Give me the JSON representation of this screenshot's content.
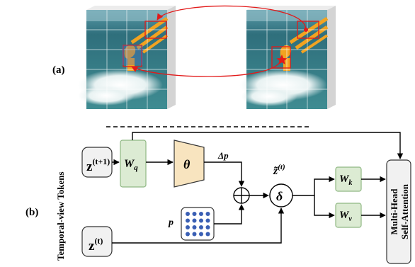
{
  "panel_a": {
    "label": "(a)"
  },
  "panel_b": {
    "label": "(b)",
    "vertical_title": "Temporal-view Tokens",
    "inputs": {
      "z_next": {
        "main": "z",
        "sup": "(t+1)"
      },
      "z_cur": {
        "main": "z",
        "sup": "(t)"
      }
    },
    "wq": {
      "main": "W",
      "sub": "q"
    },
    "theta": "θ",
    "delta_p": "Δp",
    "p_label": "p",
    "ztilde": {
      "main": "z̃",
      "sup": "(t)"
    },
    "delta": "δ",
    "wk": {
      "main": "W",
      "sub": "k"
    },
    "wv": {
      "main": "W",
      "sub": "v"
    },
    "attention": {
      "line1": "Multi-Head",
      "line2": "Self-Attention"
    }
  },
  "colors": {
    "green_fill": "#dcebd3",
    "green_stroke": "#8fb883",
    "theta_fill": "#f8e4bf",
    "grid_dot": "#3a5fb4",
    "red_arrow": "#e21a1a",
    "orange_shape": "#f2a320",
    "sea_dark": "#2f6f7c",
    "sea_light": "#6fb2b4"
  }
}
